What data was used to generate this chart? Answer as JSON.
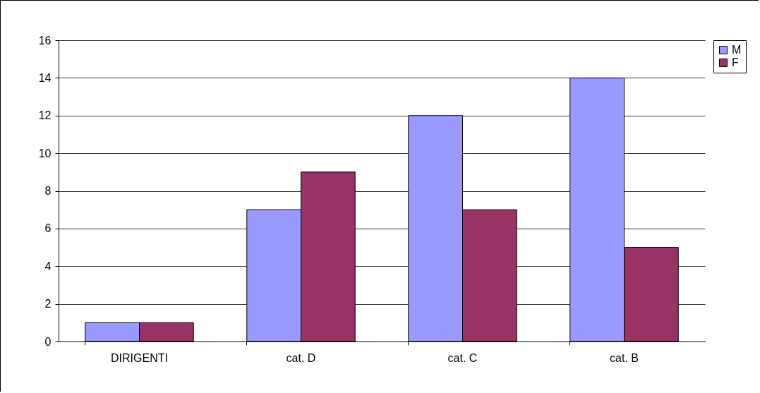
{
  "chart_data": {
    "type": "bar",
    "categories": [
      "DIRIGENTI",
      "cat. D",
      "cat. C",
      "cat. B"
    ],
    "series": [
      {
        "name": "M",
        "color": "#9999ff",
        "values": [
          1,
          7,
          12,
          14
        ]
      },
      {
        "name": "F",
        "color": "#993366",
        "values": [
          1,
          9,
          7,
          5
        ]
      }
    ],
    "ylim": [
      0,
      16
    ],
    "yticks": [
      0,
      2,
      4,
      6,
      8,
      10,
      12,
      14,
      16
    ],
    "grid": "y",
    "legend": "right"
  }
}
